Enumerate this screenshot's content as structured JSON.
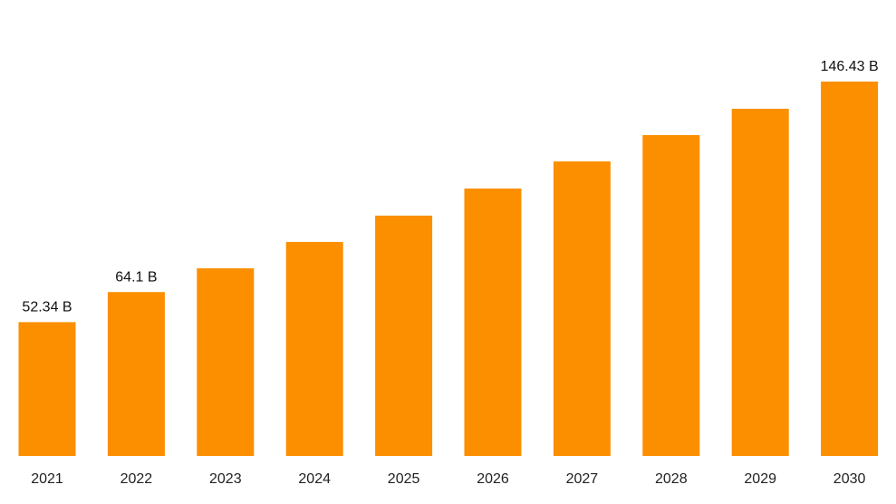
{
  "chart_data": {
    "type": "bar",
    "categories": [
      "2021",
      "2022",
      "2023",
      "2024",
      "2025",
      "2026",
      "2027",
      "2028",
      "2029",
      "2030"
    ],
    "values": [
      52.34,
      64.1,
      73.4,
      83.7,
      94.0,
      104.6,
      115.2,
      125.5,
      135.8,
      146.43
    ],
    "value_labels": [
      "52.34 B",
      "64.1 B",
      null,
      null,
      null,
      null,
      null,
      null,
      null,
      "146.43 B"
    ],
    "color": "#fb8f00"
  }
}
